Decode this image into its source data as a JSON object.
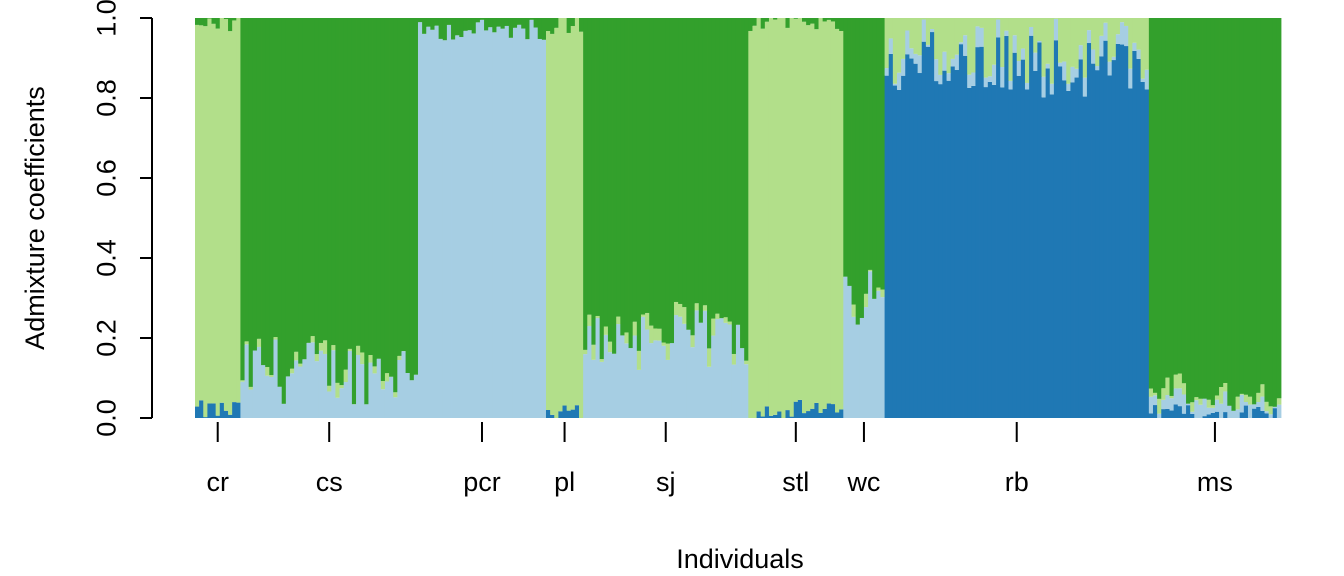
{
  "chart_data": {
    "type": "bar",
    "stacked": true,
    "xlabel": "Individuals",
    "ylabel": "Admixture coefficients",
    "ylim": [
      0,
      1
    ],
    "yticks": [
      "0.0",
      "0.2",
      "0.4",
      "0.6",
      "0.8",
      "1.0"
    ],
    "colors": {
      "light_blue": "#a6cee3",
      "dark_blue": "#1f78b4",
      "light_green": "#b2df8a",
      "dark_green": "#33a02c"
    },
    "groups": [
      {
        "label": "cr",
        "n": 11,
        "mean": {
          "dark_blue": 0.02,
          "light_blue": 0.0,
          "light_green": 0.97,
          "dark_green": 0.01
        }
      },
      {
        "label": "cs",
        "n": 43,
        "mean": {
          "dark_blue": 0.0,
          "light_blue": 0.12,
          "light_green": 0.01,
          "dark_green": 0.87
        }
      },
      {
        "label": "pcr",
        "n": 31,
        "mean": {
          "dark_blue": 0.0,
          "light_blue": 0.97,
          "light_green": 0.0,
          "dark_green": 0.03
        }
      },
      {
        "label": "pl",
        "n": 9,
        "mean": {
          "dark_blue": 0.01,
          "light_blue": 0.0,
          "light_green": 0.97,
          "dark_green": 0.02
        }
      },
      {
        "label": "sj",
        "n": 40,
        "mean": {
          "dark_blue": 0.0,
          "light_blue": 0.2,
          "light_green": 0.02,
          "dark_green": 0.78
        }
      },
      {
        "label": "stl",
        "n": 23,
        "mean": {
          "dark_blue": 0.02,
          "light_blue": 0.0,
          "light_green": 0.97,
          "dark_green": 0.01
        }
      },
      {
        "label": "wc",
        "n": 10,
        "mean": {
          "dark_blue": 0.0,
          "light_blue": 0.3,
          "light_green": 0.01,
          "dark_green": 0.69
        }
      },
      {
        "label": "rb",
        "n": 64,
        "mean": {
          "dark_blue": 0.88,
          "light_blue": 0.03,
          "light_green": 0.09,
          "dark_green": 0.0
        }
      },
      {
        "label": "ms",
        "n": 32,
        "mean": {
          "dark_blue": 0.01,
          "light_blue": 0.03,
          "light_green": 0.02,
          "dark_green": 0.94
        }
      }
    ]
  }
}
